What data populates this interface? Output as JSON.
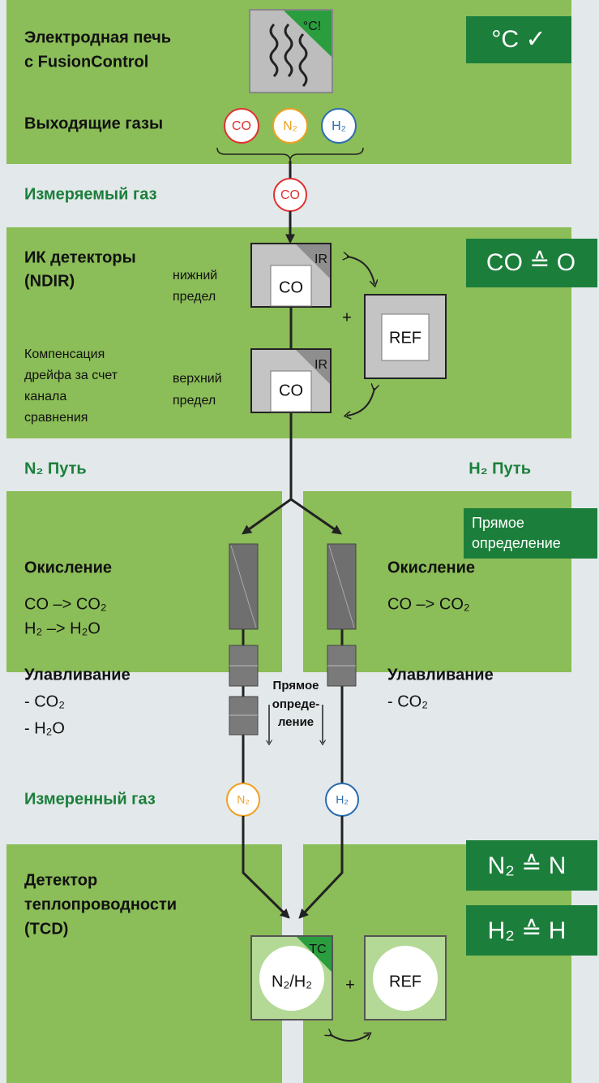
{
  "furnace": {
    "title": [
      "Электродная печь",
      "с FusionControl"
    ],
    "icon": "°C!",
    "badge": "°C ✓",
    "gases_label": "Выходящие газы",
    "gases": [
      "CO",
      "N₂",
      "H₂"
    ]
  },
  "measured_gas": {
    "label": "Измеряемый газ",
    "gas": "CO"
  },
  "ir": {
    "title": [
      "ИК детекторы",
      "(NDIR)"
    ],
    "low": {
      "label": [
        "нижний",
        "предел"
      ],
      "tag": "IR",
      "gas": "CO"
    },
    "high": {
      "label": [
        "верхний",
        "предел"
      ],
      "tag": "IR",
      "gas": "CO"
    },
    "compensation": [
      "Компенсация",
      "дрейфа за счет",
      "канала",
      "сравнения"
    ],
    "plus": "+",
    "ref": "REF",
    "badge": "CO ≙ O"
  },
  "paths": {
    "n2": "N₂ Путь",
    "h2": "H₂ Путь",
    "direct_badge": [
      "Прямое",
      "определение"
    ]
  },
  "left": {
    "oxidation": "Окисление",
    "reactions": [
      "CO –> CO₂",
      "H₂  –> H₂O"
    ],
    "trapping": "Улавливание",
    "trapped": [
      "- CO₂",
      "- H₂O"
    ]
  },
  "right": {
    "oxidation": "Окисление",
    "reactions": [
      "CO –> CO₂"
    ],
    "trapping": "Улавливание",
    "trapped": [
      "- CO₂"
    ]
  },
  "middle": [
    "Прямое",
    "опреде-",
    "ление"
  ],
  "measured": {
    "label": "Измеренный газ",
    "gases": [
      "N₂",
      "H₂"
    ]
  },
  "tcd": {
    "title": [
      "Детектор",
      "теплопроводности",
      "(TCD)"
    ],
    "tag": "TC",
    "gas": "N₂/H₂",
    "plus": "+",
    "ref": "REF",
    "badges": [
      "N₂ ≙ N",
      "H₂ ≙ H"
    ]
  }
}
